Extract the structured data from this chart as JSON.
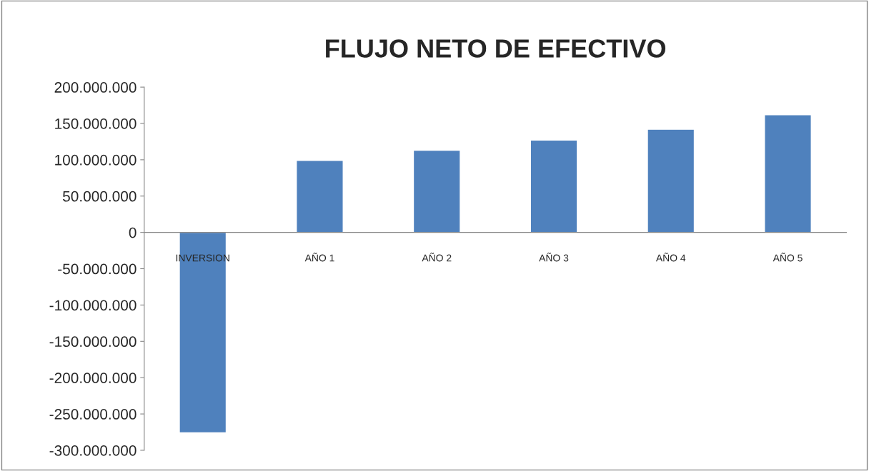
{
  "chart_data": {
    "type": "bar",
    "title": "FLUJO NETO DE EFECTIVO",
    "categories": [
      "INVERSION",
      "AÑO 1",
      "AÑO 2",
      "AÑO 3",
      "AÑO 4",
      "AÑO 5"
    ],
    "series": [
      {
        "color": "#4f81bd",
        "values": [
          -276000000,
          99000000,
          113000000,
          127000000,
          142000000,
          162000000
        ]
      }
    ],
    "ylim": [
      -300000000,
      200000000
    ],
    "yticks": [
      {
        "value": -300000000,
        "label": "-300.000.000"
      },
      {
        "value": -250000000,
        "label": "-250.000.000"
      },
      {
        "value": -200000000,
        "label": "-200.000.000"
      },
      {
        "value": -150000000,
        "label": "-150.000.000"
      },
      {
        "value": -100000000,
        "label": "-100.000.000"
      },
      {
        "value": -50000000,
        "label": "-50.000.000"
      },
      {
        "value": 0,
        "label": "0"
      },
      {
        "value": 50000000,
        "label": "50.000.000"
      },
      {
        "value": 100000000,
        "label": "100.000.000"
      },
      {
        "value": 150000000,
        "label": "150.000.000"
      },
      {
        "value": 200000000,
        "label": "200.000.000"
      }
    ],
    "grid": false
  }
}
